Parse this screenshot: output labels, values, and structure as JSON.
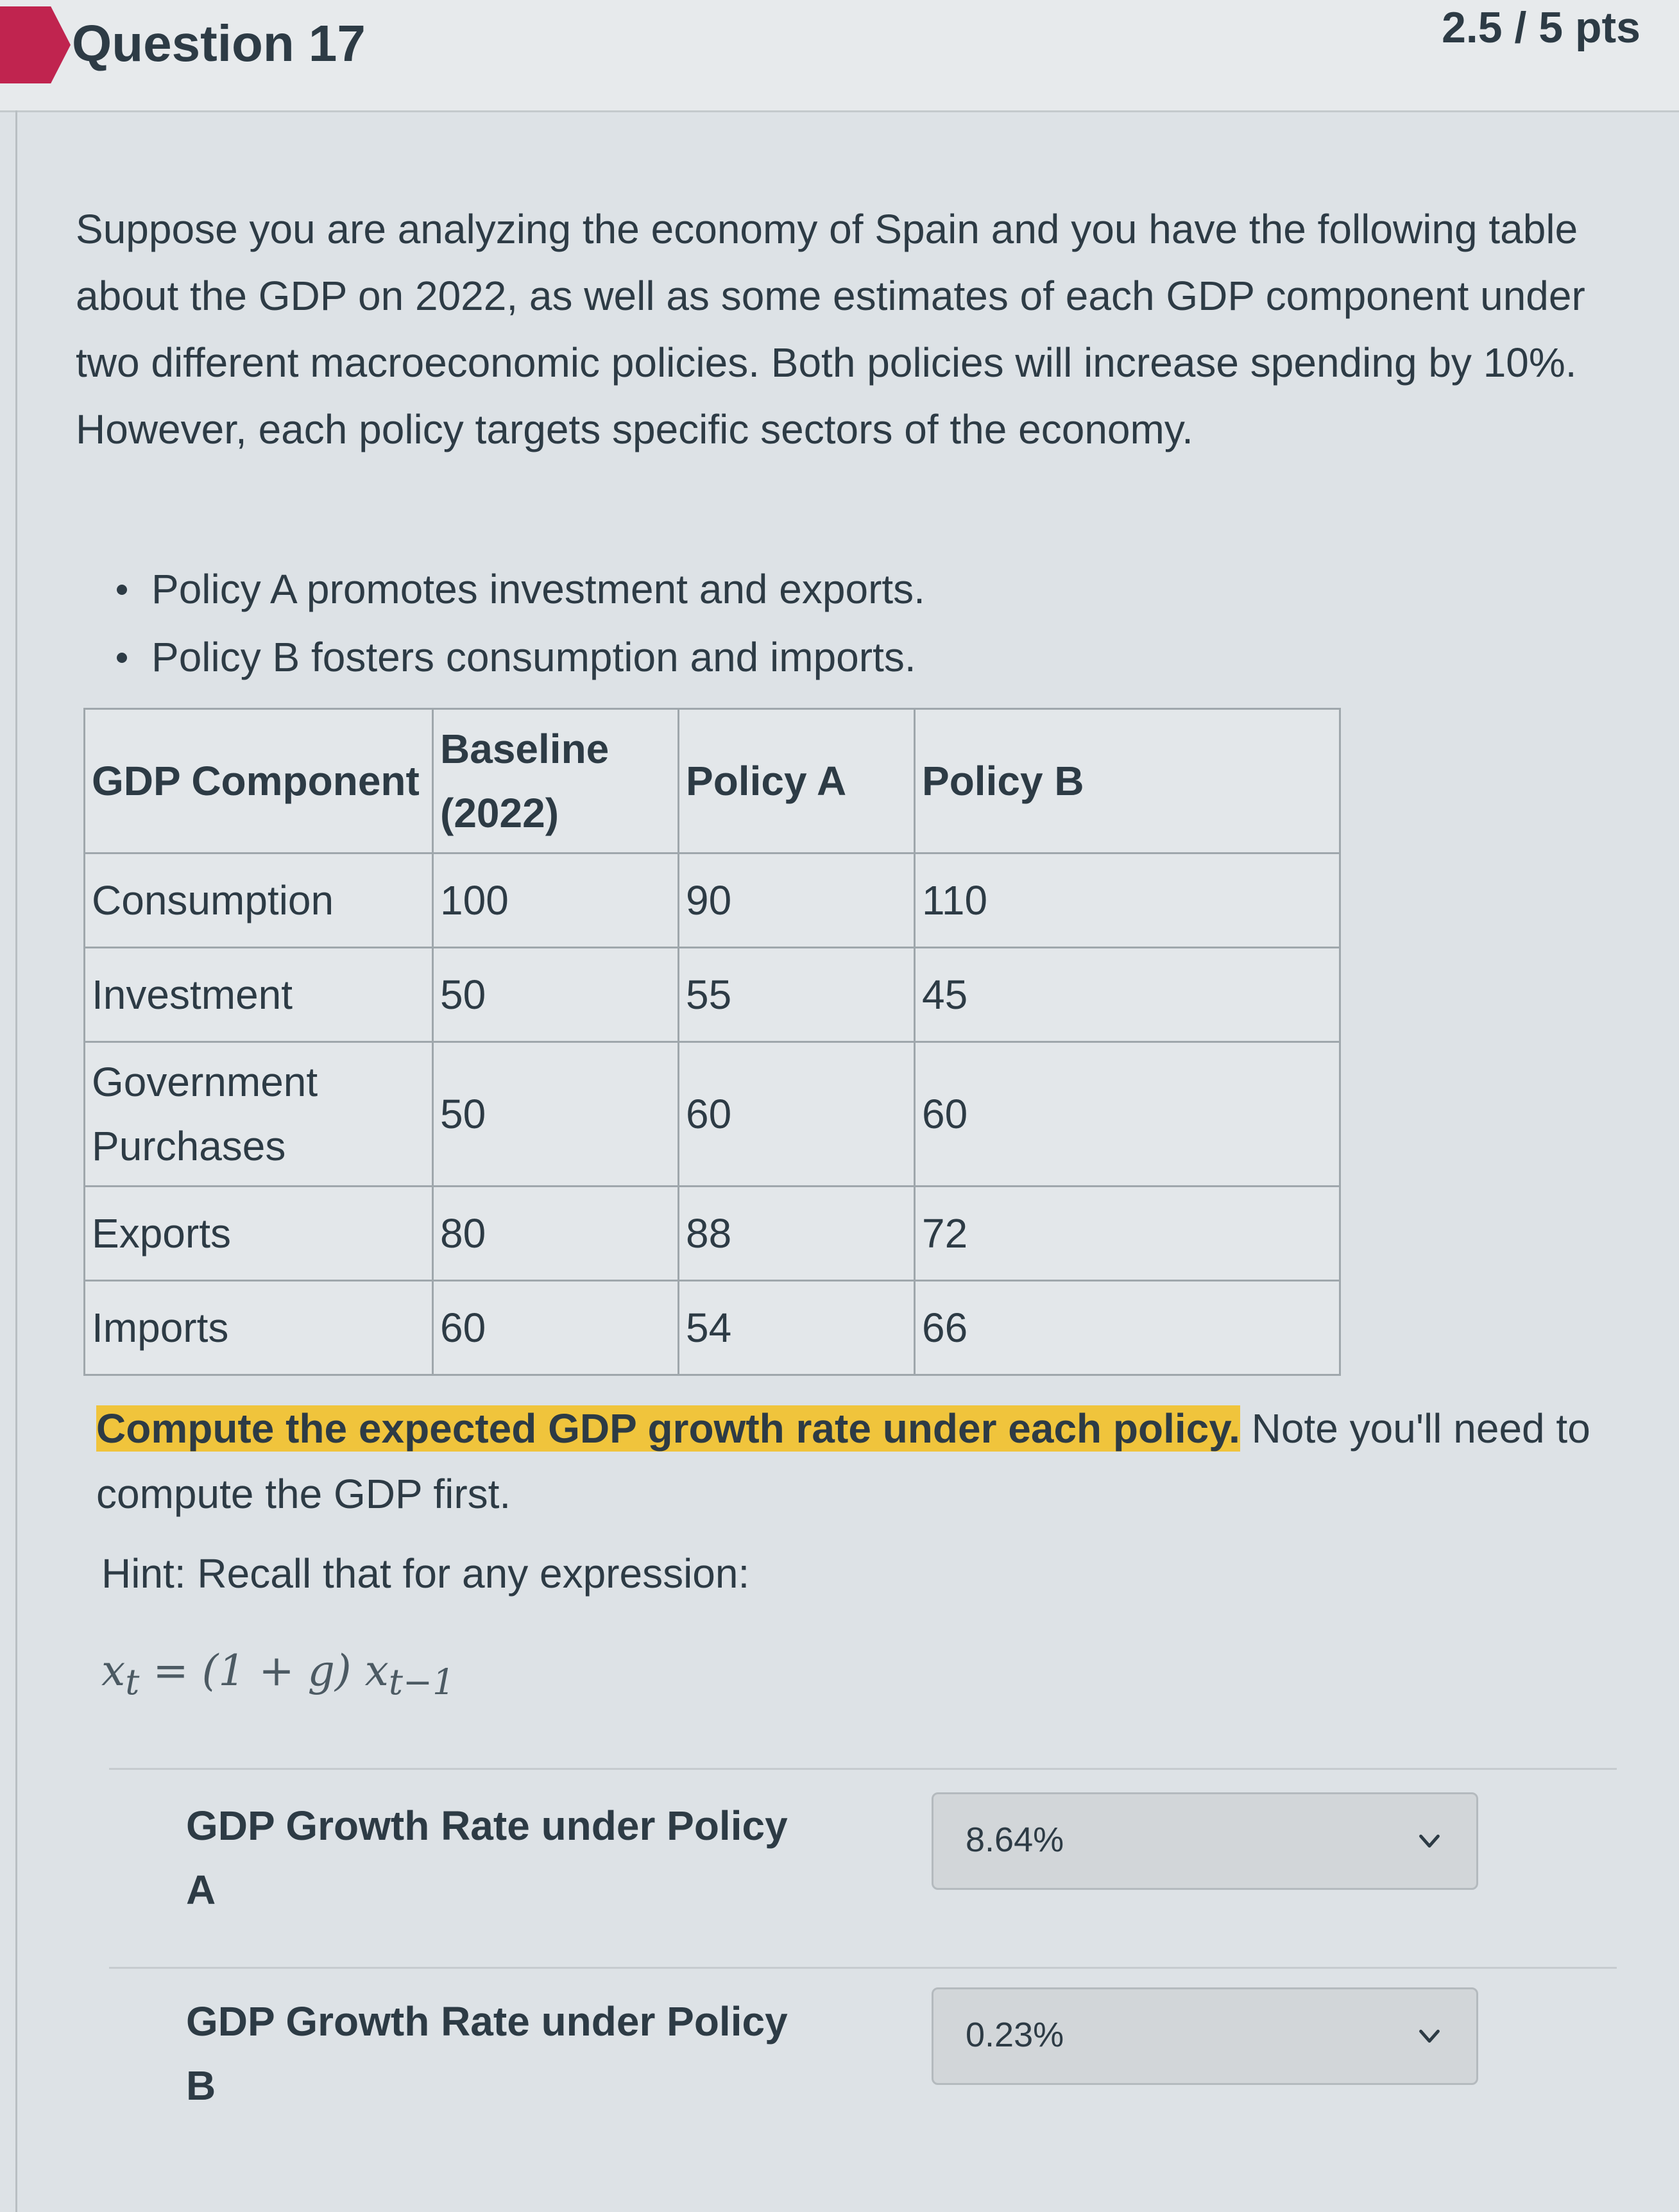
{
  "question": {
    "title": "Question 17",
    "points": "2.5 / 5 pts"
  },
  "intro": "Suppose you are analyzing the economy of Spain and you have the following table about the GDP on 2022, as well as some estimates of each GDP component under two different macroeconomic policies. Both policies will increase spending by 10%. However, each policy targets specific sectors of the economy.",
  "bullets": [
    "Policy A promotes investment and exports.",
    "Policy B fosters consumption and imports."
  ],
  "table": {
    "headers": [
      "GDP Component",
      "Baseline (2022)",
      "Policy A",
      "Policy B"
    ],
    "rows": [
      [
        "Consumption",
        "100",
        "90",
        "110"
      ],
      [
        "Investment",
        "50",
        "55",
        "45"
      ],
      [
        "Government Purchases",
        "50",
        "60",
        "60"
      ],
      [
        "Exports",
        "80",
        "88",
        "72"
      ],
      [
        "Imports",
        "60",
        "54",
        "66"
      ]
    ]
  },
  "task": {
    "highlighted": "Compute the expected GDP growth rate under each policy.",
    "rest": " Note you'll need to compute the GDP first."
  },
  "hint": "Hint: Recall that for any expression:",
  "formula": {
    "x": "x",
    "t": "t",
    "eq": " = (1 + ",
    "g": "g",
    "close": ") ",
    "x2": "x",
    "tm1": "t−1"
  },
  "answers": [
    {
      "label": "GDP Growth Rate under Policy A",
      "selected": "8.64%"
    },
    {
      "label": "GDP Growth Rate under Policy B",
      "selected": "0.23%"
    }
  ],
  "icons": {
    "flag": "question-flag-icon",
    "chevron": "chevron-down-icon"
  },
  "colors": {
    "flag": "#c0244f",
    "highlight": "#f0c43c",
    "text": "#2d3b45"
  }
}
